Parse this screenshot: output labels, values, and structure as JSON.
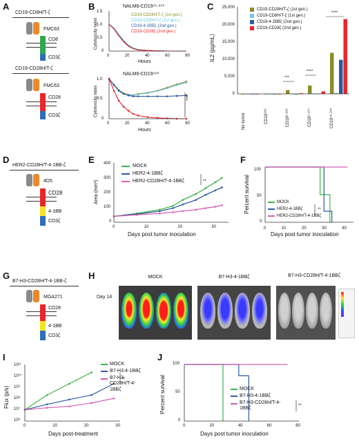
{
  "panels": {
    "A": {
      "letter": "A",
      "construct1": {
        "title": "CD19-CD8H/T-ζ",
        "scfv": "FMC63",
        "hinge": "CD8",
        "signal": "CD3ζ"
      },
      "construct2": {
        "title": "CD19-CD28H/T-ζ",
        "scfv": "FMC63",
        "hinge": "CD28",
        "signal": "CD3ζ"
      }
    },
    "B": {
      "letter": "B",
      "top_title": "NALM6-CD19⁴⁵·⁸⁵¹",
      "bottom_title": "NALM6-CD19⁹⁶³",
      "ylabel": "Cytotoxicity index",
      "xlabel": "Hours",
      "legend": [
        "CD19-CD28H/T-ζ (1st gen.)",
        "CD19-CD8H/T-ζ (1st gen.)",
        "CD19-4-1BBζ (2nd gen.)",
        "CD19-CD28ζ (2nd gen.)"
      ],
      "yticks_top": [
        "1.5",
        "1.0",
        "0.5",
        "0"
      ],
      "yticks_bottom": [
        "1.0",
        "0.5",
        "0"
      ],
      "xticks": [
        "0",
        "20",
        "40",
        "60",
        "80"
      ],
      "sig": "****"
    },
    "C": {
      "letter": "C",
      "ylabel": "IL2 (pg/mL)",
      "yticks": [
        "25,000",
        "20,000",
        "15,000",
        "10,000",
        "5,000",
        "0"
      ],
      "categories": [
        "No tumor",
        "CD19⁹⁶³",
        "CD19²·⁸⁵³",
        "CD19⁶·¹⁹⁶",
        "CD19⁴⁵·⁸⁵¹"
      ],
      "legend": [
        "CD19-CD28H/T-ζ (1st gen.)",
        "CD19-CD8H/T-ζ (1st gen.)",
        "CD19-4-1BBζ (2nd gen.)",
        "CD19-CD28ζ (2nd gen.)"
      ],
      "sig": [
        "***",
        "****",
        "****"
      ]
    },
    "D": {
      "letter": "D",
      "title": "HER2-CD28H/T-4-1BB-ζ",
      "scfv": "4D5",
      "hinge": "CD28",
      "costim": "4-1BB",
      "signal": "CD3ζ"
    },
    "E": {
      "letter": "E",
      "ylabel": "Area (mm²)",
      "xlabel": "Days post tumor inoculation",
      "legend": [
        "MOCK",
        "HER2-4-1BBζ",
        "HER2-CD28H/T-4-1BBζ"
      ],
      "yticks": [
        "400",
        "300",
        "200",
        "100",
        "0"
      ],
      "xticks": [
        "0",
        "10",
        "20",
        "30"
      ],
      "sig": "**"
    },
    "F": {
      "letter": "F",
      "ylabel": "Percent survival",
      "xlabel": "Days post tumor inoculation",
      "legend": [
        "MOCK",
        "HER2-4-1BBζ",
        "HER2-CD28H/T-4-1BBζ"
      ],
      "yticks": [
        "100",
        "50",
        "0"
      ],
      "xticks": [
        "0",
        "10",
        "20",
        "30",
        "40"
      ],
      "sig": "**"
    },
    "G": {
      "letter": "G",
      "title": "B7-H3-CD28H/T-4-1BB-ζ",
      "scfv": "MGA271",
      "hinge": "CD28",
      "costim": "4-1BB",
      "signal": "CD3ζ"
    },
    "H": {
      "letter": "H",
      "day": "Day 14",
      "groups": [
        "MOCK",
        "B7-H3-4-1BBζ",
        "B7-H3-CD28H/T-4-1BBζ"
      ]
    },
    "I": {
      "letter": "I",
      "ylabel": "Flux (p/s)",
      "xlabel": "Days post-treatment",
      "legend": [
        "MOCK",
        "B7-H3-4-1BBζ",
        "B7-H3-CD28H/T-4-1BBζ"
      ],
      "yticks": [
        "10¹¹",
        "10¹⁰",
        "10⁹",
        "10⁸",
        "10⁷",
        "10⁶"
      ],
      "xticks": [
        "0",
        "10",
        "20",
        "30"
      ],
      "sig": "**"
    },
    "J": {
      "letter": "J",
      "ylabel": "Percent survival",
      "xlabel": "Days post tumor inoculation",
      "legend": [
        "MOCK",
        "B7-H3-4-1BBζ",
        "B7-H3-CD28H/T-4-1BBζ"
      ],
      "yticks": [
        "100",
        "50",
        "0"
      ],
      "xticks": [
        "0",
        "20",
        "40",
        "60",
        "80"
      ],
      "sig": "**"
    }
  },
  "colors": {
    "olive": "#8c8c2a",
    "cyan": "#6fc8e0",
    "blue": "#2c5aa0",
    "red": "#e8262a",
    "green": "#39b54a",
    "magenta": "#d55db5",
    "orange": "#e88a2a",
    "gray": "#8a8a8a",
    "cd8": "#2fa84f",
    "cd28": "#e8262a",
    "bb": "#f3e323",
    "cd3z": "#2c6fb5"
  },
  "chart_data": [
    {
      "type": "line",
      "title": "NALM6-CD19⁴⁵·⁸⁵¹",
      "xlabel": "Hours",
      "ylabel": "Cytotoxicity index",
      "xlim": [
        0,
        80
      ],
      "ylim": [
        0,
        1.5
      ],
      "x": [
        0,
        5,
        10,
        15,
        20,
        25,
        30,
        40,
        50,
        60,
        70,
        80
      ],
      "series": [
        {
          "name": "CD19-CD28H/T-ζ (1st gen.)",
          "values": [
            1.0,
            0.85,
            0.6,
            0.38,
            0.2,
            0.1,
            0.05,
            0.02,
            0.01,
            0.0,
            0.0,
            0.0
          ]
        },
        {
          "name": "CD19-CD8H/T-ζ (1st gen.)",
          "values": [
            1.0,
            0.87,
            0.63,
            0.41,
            0.23,
            0.12,
            0.06,
            0.02,
            0.01,
            0.0,
            0.0,
            0.0
          ]
        },
        {
          "name": "CD19-4-1BBζ (2nd gen.)",
          "values": [
            1.0,
            0.84,
            0.58,
            0.36,
            0.19,
            0.09,
            0.05,
            0.02,
            0.01,
            0.0,
            0.0,
            0.0
          ]
        },
        {
          "name": "CD19-CD28ζ (2nd gen.)",
          "values": [
            1.0,
            0.83,
            0.57,
            0.35,
            0.18,
            0.09,
            0.04,
            0.02,
            0.01,
            0.0,
            0.0,
            0.0
          ]
        }
      ]
    },
    {
      "type": "line",
      "title": "NALM6-CD19⁹⁶³",
      "xlabel": "Hours",
      "ylabel": "Cytotoxicity index",
      "xlim": [
        0,
        80
      ],
      "ylim": [
        0,
        1.0
      ],
      "x": [
        0,
        5,
        10,
        15,
        20,
        25,
        30,
        40,
        50,
        60,
        70,
        80
      ],
      "series": [
        {
          "name": "CD19-CD28H/T-ζ (1st gen.)",
          "values": [
            1.0,
            0.85,
            0.72,
            0.64,
            0.6,
            0.59,
            0.62,
            0.65,
            0.7,
            0.78,
            0.86,
            0.93
          ]
        },
        {
          "name": "CD19-CD8H/T-ζ (1st gen.)",
          "values": [
            1.0,
            0.84,
            0.7,
            0.62,
            0.59,
            0.58,
            0.61,
            0.64,
            0.69,
            0.76,
            0.84,
            0.9
          ]
        },
        {
          "name": "CD19-4-1BBζ (2nd gen.)",
          "values": [
            1.0,
            0.84,
            0.7,
            0.62,
            0.58,
            0.56,
            0.56,
            0.56,
            0.56,
            0.56,
            0.57,
            0.58
          ]
        },
        {
          "name": "CD19-CD28ζ (2nd gen.)",
          "values": [
            1.0,
            0.7,
            0.45,
            0.3,
            0.2,
            0.12,
            0.08,
            0.04,
            0.02,
            0.01,
            0.0,
            0.0
          ]
        }
      ]
    },
    {
      "type": "bar",
      "ylabel": "IL2 (pg/mL)",
      "ylim": [
        0,
        25000
      ],
      "categories": [
        "No tumor",
        "CD19⁹⁶³",
        "CD19²·⁸⁵³",
        "CD19⁶·¹⁹⁶",
        "CD19⁴⁵·⁸⁵¹"
      ],
      "series": [
        {
          "name": "CD19-CD28H/T-ζ (1st gen.)",
          "values": [
            0,
            0,
            1100,
            2400,
            11800
          ]
        },
        {
          "name": "CD19-CD8H/T-ζ (1st gen.)",
          "values": [
            0,
            0,
            0,
            0,
            300
          ]
        },
        {
          "name": "CD19-4-1BBζ (2nd gen.)",
          "values": [
            0,
            0,
            0,
            100,
            9800
          ]
        },
        {
          "name": "CD19-CD28ζ (2nd gen.)",
          "values": [
            0,
            0,
            200,
            700,
            21500
          ]
        }
      ]
    },
    {
      "type": "line",
      "xlabel": "Days post tumor inoculation",
      "ylabel": "Area (mm²)",
      "xlim": [
        0,
        35
      ],
      "ylim": [
        0,
        400
      ],
      "x": [
        0,
        7,
        14,
        18,
        21,
        25,
        28,
        31,
        33
      ],
      "series": [
        {
          "name": "MOCK",
          "values": [
            40,
            60,
            85,
            110,
            150,
            190,
            230,
            270,
            300
          ]
        },
        {
          "name": "HER2-4-1BBζ",
          "values": [
            40,
            55,
            75,
            95,
            120,
            150,
            185,
            215,
            235
          ]
        },
        {
          "name": "HER2-CD28H/T-4-1BBζ",
          "values": [
            40,
            50,
            60,
            68,
            75,
            85,
            95,
            105,
            115
          ]
        }
      ]
    },
    {
      "type": "line",
      "xlabel": "Days post tumor inoculation",
      "ylabel": "Percent survival",
      "xlim": [
        0,
        45
      ],
      "ylim": [
        0,
        100
      ],
      "series": [
        {
          "name": "MOCK",
          "x": [
            0,
            28,
            28,
            33,
            33
          ],
          "values": [
            100,
            100,
            50,
            50,
            0
          ]
        },
        {
          "name": "HER2-4-1BBζ",
          "x": [
            0,
            30,
            30,
            34,
            34
          ],
          "values": [
            100,
            100,
            20,
            20,
            0
          ]
        },
        {
          "name": "HER2-CD28H/T-4-1BBζ",
          "x": [
            0,
            42
          ],
          "values": [
            100,
            100
          ]
        }
      ]
    },
    {
      "type": "line",
      "xlabel": "Days post-treatment",
      "ylabel": "Flux (p/s)",
      "xlim": [
        0,
        30
      ],
      "log_y": true,
      "ylim": [
        1000000,
        100000000000
      ],
      "x": [
        0,
        7,
        14,
        21,
        28
      ],
      "series": [
        {
          "name": "MOCK",
          "values": [
            10000000,
            200000000,
            2000000000,
            20000000000,
            null
          ]
        },
        {
          "name": "B7-H3-4-1BBζ",
          "values": [
            10000000,
            30000000,
            80000000,
            200000000,
            2000000000
          ]
        },
        {
          "name": "B7-H3-CD28H/T-4-1BBζ",
          "values": [
            10000000,
            15000000,
            20000000,
            40000000,
            100000000
          ]
        }
      ]
    },
    {
      "type": "line",
      "xlabel": "Days post tumor inoculation",
      "ylabel": "Percent survival",
      "xlim": [
        0,
        80
      ],
      "ylim": [
        0,
        100
      ],
      "series": [
        {
          "name": "MOCK",
          "x": [
            0,
            27,
            27
          ],
          "values": [
            100,
            100,
            0
          ]
        },
        {
          "name": "B7-H3-4-1BBζ",
          "x": [
            0,
            38,
            38,
            45,
            45
          ],
          "values": [
            100,
            100,
            80,
            80,
            0
          ]
        },
        {
          "name": "B7-H3-CD28H/T-4-1BBζ",
          "x": [
            0,
            72
          ],
          "values": [
            100,
            100
          ]
        }
      ]
    }
  ]
}
